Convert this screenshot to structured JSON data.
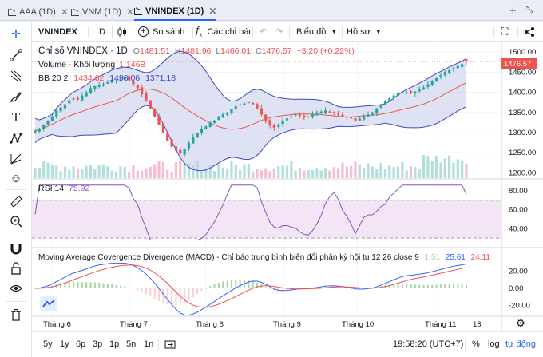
{
  "tabs": [
    {
      "label": "AAA (1D)"
    },
    {
      "label": "VNM (1D)"
    },
    {
      "label": "VNINDEX (1D)"
    }
  ],
  "toolbar": {
    "symbol": "VNINDEX",
    "interval": "D",
    "compare_label": "So sánh",
    "indicators_label": "Các chỉ báo",
    "chart_type_label": "Biểu đồ",
    "profile_label": "Hồ sơ"
  },
  "legend": {
    "title": "Chỉ số VNINDEX · 1D",
    "o_label": "O",
    "o": "1481.51",
    "h_label": "H",
    "h": "1481.96",
    "l_label": "L",
    "l": "1466.01",
    "c_label": "C",
    "c": "1476.57",
    "change": "+3.20 (+0.22%)",
    "volume_label": "Volume - Khối lượng",
    "volume_value": "1.146B",
    "bb_label": "BB 20 2",
    "bb_basis": "1434.62",
    "bb_upper": "1498.06",
    "bb_lower": "1371.18",
    "rsi_label": "RSI 14",
    "rsi_value": "75.92",
    "macd_label": "Moving Average Covergence Divergence (MACD) - Chỉ báo trung bình biến đổi phân kỳ hội tụ 12 26 close 9",
    "macd_hist": "1.51",
    "macd_line": "25.61",
    "macd_signal": "24.11"
  },
  "price_axis": {
    "ticks": [
      "1500.00",
      "1450.00",
      "1400.00",
      "1350.00",
      "1300.00",
      "1250.00",
      "1200.00"
    ],
    "last_price": "1476.57"
  },
  "rsi_axis": {
    "ticks": [
      "80.00",
      "60.00",
      "40.00"
    ]
  },
  "macd_axis": {
    "ticks": [
      "20.00",
      "0.00",
      "-20.00"
    ]
  },
  "time_axis": {
    "ticks": [
      "Tháng 6",
      "Tháng 7",
      "Tháng 8",
      "Tháng 9",
      "Tháng 10",
      "Tháng 11",
      "18"
    ]
  },
  "bottom": {
    "ranges": [
      "5y",
      "1y",
      "6p",
      "3p",
      "1p",
      "5n",
      "1n"
    ],
    "clock": "19:58:20 (UTC+7)",
    "percent": "%",
    "log": "log",
    "auto": "tự động"
  },
  "colors": {
    "up": "#26a69a",
    "down": "#ef5350",
    "bb_fill": "#c5cae9",
    "bb_line": "#3b47c8",
    "bb_basis": "#ef5350",
    "rsi": "#7e57c2",
    "rsi_band": "#f3e5f5",
    "macd": "#2962ff",
    "signal": "#ef5350",
    "accent": "#2962ff"
  },
  "chart_data": {
    "type": "candlestick",
    "x_ticks": [
      "Tháng 6",
      "Tháng 7",
      "Tháng 8",
      "Tháng 9",
      "Tháng 10",
      "Tháng 11",
      "18"
    ],
    "y_range": [
      1185,
      1520
    ],
    "close_approx": [
      1305,
      1310,
      1320,
      1328,
      1340,
      1355,
      1362,
      1370,
      1380,
      1385,
      1382,
      1392,
      1400,
      1410,
      1415,
      1418,
      1420,
      1425,
      1430,
      1428,
      1432,
      1438,
      1430,
      1420,
      1410,
      1395,
      1380,
      1360,
      1340,
      1320,
      1300,
      1280,
      1265,
      1255,
      1248,
      1260,
      1275,
      1290,
      1300,
      1310,
      1315,
      1325,
      1330,
      1340,
      1345,
      1350,
      1358,
      1365,
      1370,
      1372,
      1375,
      1370,
      1360,
      1345,
      1330,
      1318,
      1312,
      1320,
      1330,
      1335,
      1340,
      1345,
      1342,
      1338,
      1340,
      1345,
      1350,
      1352,
      1355,
      1350,
      1348,
      1345,
      1340,
      1338,
      1335,
      1330,
      1335,
      1340,
      1345,
      1350,
      1360,
      1370,
      1378,
      1385,
      1392,
      1398,
      1402,
      1400,
      1398,
      1402,
      1408,
      1412,
      1420,
      1428,
      1435,
      1442,
      1450,
      1455,
      1460,
      1465,
      1470,
      1476.57
    ],
    "rsi_range": [
      20,
      90
    ],
    "rsi_bands": [
      70,
      30
    ],
    "macd_range": [
      -30,
      30
    ],
    "last": {
      "open": 1481.51,
      "high": 1481.96,
      "low": 1466.01,
      "close": 1476.57,
      "volume": "1.146B"
    }
  }
}
